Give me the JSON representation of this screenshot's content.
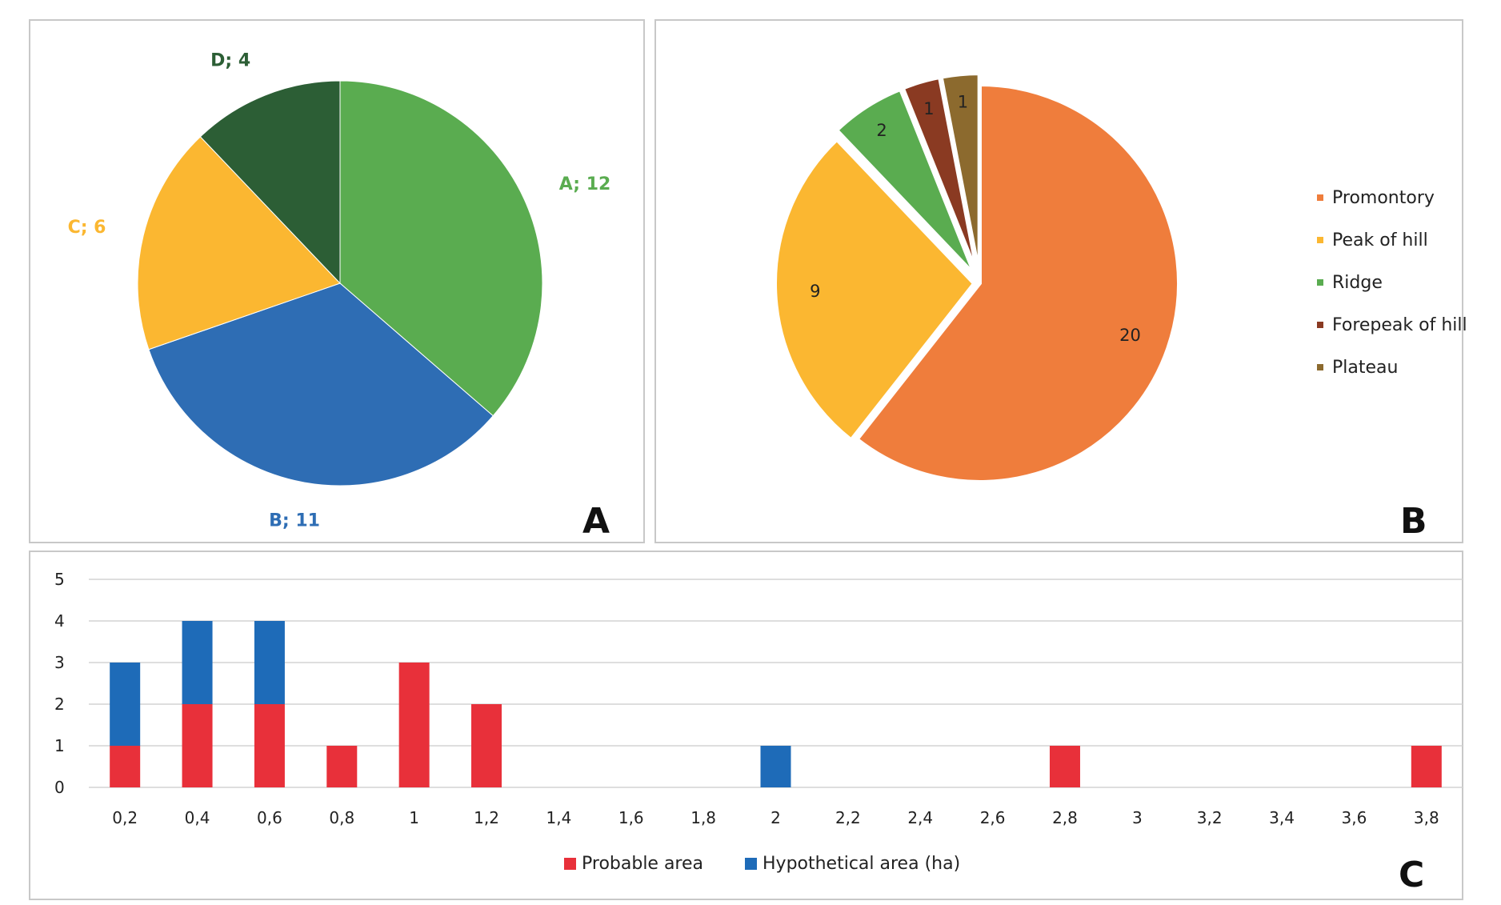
{
  "panels": {
    "a_letter": "A",
    "b_letter": "B",
    "c_letter": "C"
  },
  "chart_data": [
    {
      "type": "pie",
      "panel": "A",
      "categories": [
        "A",
        "B",
        "C",
        "D"
      ],
      "values": [
        12,
        11,
        6,
        4
      ],
      "labels": [
        "A; 12",
        "B; 11",
        "C; 6",
        "D; 4"
      ],
      "colors": [
        "#5aac50",
        "#2e6db4",
        "#fbb731",
        "#2c5e35"
      ]
    },
    {
      "type": "pie",
      "panel": "B",
      "categories": [
        "Promontory",
        "Peak of hill",
        "Ridge",
        "Forepeak of hill",
        "Plateau"
      ],
      "values": [
        20,
        9,
        2,
        1,
        1
      ],
      "labels": [
        "20",
        "9",
        "2",
        "1",
        "1"
      ],
      "colors": [
        "#ef7d3c",
        "#fbb731",
        "#5aac50",
        "#8a3a22",
        "#8c6a2e"
      ],
      "legend": [
        "Promontory",
        "Peak of hill",
        "Ridge",
        "Forepeak of hill",
        "Plateau"
      ],
      "legend_position": "right"
    },
    {
      "type": "bar",
      "stacked": true,
      "panel": "C",
      "categories": [
        "0,2",
        "0,4",
        "0,6",
        "0,8",
        "1",
        "1,2",
        "1,4",
        "1,6",
        "1,8",
        "2",
        "2,2",
        "2,4",
        "2,6",
        "2,8",
        "3",
        "3,2",
        "3,4",
        "3,6",
        "3,8"
      ],
      "series": [
        {
          "name": "Probable area",
          "color": "#e8303a",
          "values": [
            1,
            2,
            2,
            1,
            3,
            2,
            0,
            0,
            0,
            0,
            0,
            0,
            0,
            1,
            0,
            0,
            0,
            0,
            1
          ]
        },
        {
          "name": "Hypothetical area (ha)",
          "color": "#1e6bb8",
          "values": [
            2,
            2,
            2,
            0,
            0,
            0,
            0,
            0,
            0,
            1,
            0,
            0,
            0,
            0,
            0,
            0,
            0,
            0,
            0
          ]
        }
      ],
      "yticks": [
        "0",
        "1",
        "2",
        "3",
        "4",
        "5"
      ],
      "ylim": [
        0,
        5
      ],
      "grid": true,
      "legend_position": "bottom"
    }
  ]
}
